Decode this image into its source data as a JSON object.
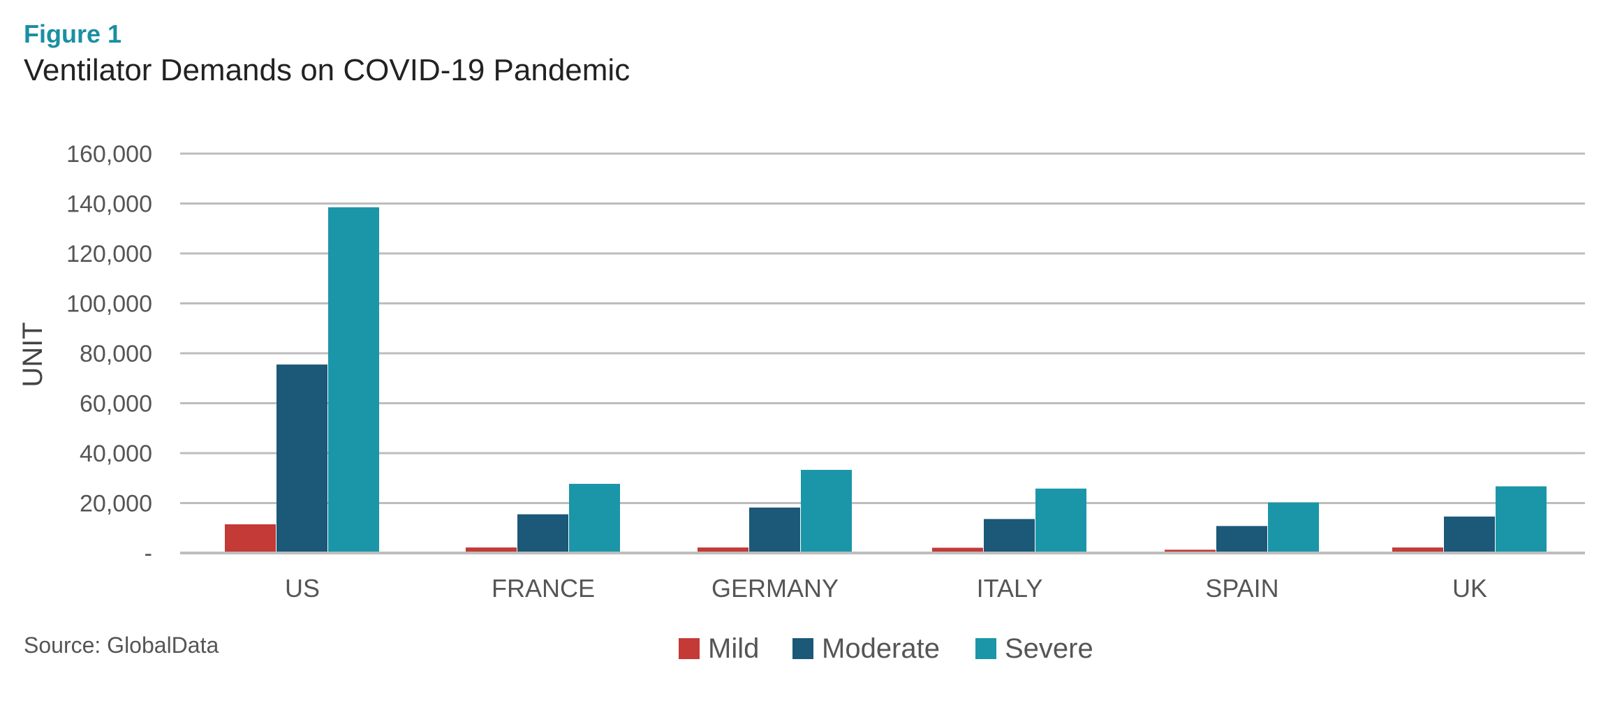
{
  "figure_label": "Figure 1",
  "source": "Source: GlobalData",
  "chart_data": {
    "type": "bar",
    "title": "Ventilator Demands on COVID-19 Pandemic",
    "xlabel": "",
    "ylabel": "UNIT",
    "categories": [
      "US",
      "FRANCE",
      "GERMANY",
      "ITALY",
      "SPAIN",
      "UK"
    ],
    "series": [
      {
        "name": "Mild",
        "color": "#c33a36",
        "values": [
          11500,
          2200,
          2200,
          2100,
          1300,
          2200
        ]
      },
      {
        "name": "Moderate",
        "color": "#1c5877",
        "values": [
          75500,
          15500,
          18200,
          13600,
          10800,
          14600
        ]
      },
      {
        "name": "Severe",
        "color": "#1a96a8",
        "values": [
          138500,
          27700,
          33300,
          25800,
          20200,
          26700
        ]
      }
    ],
    "ylim": [
      0,
      160000
    ],
    "yticks": [
      0,
      20000,
      40000,
      60000,
      80000,
      100000,
      120000,
      140000,
      160000
    ],
    "ytick_labels": [
      "-",
      "20,000",
      "40,000",
      "60,000",
      "80,000",
      "100,000",
      "120,000",
      "140,000",
      "160,000"
    ],
    "grid": true,
    "legend_position": "bottom-center"
  }
}
